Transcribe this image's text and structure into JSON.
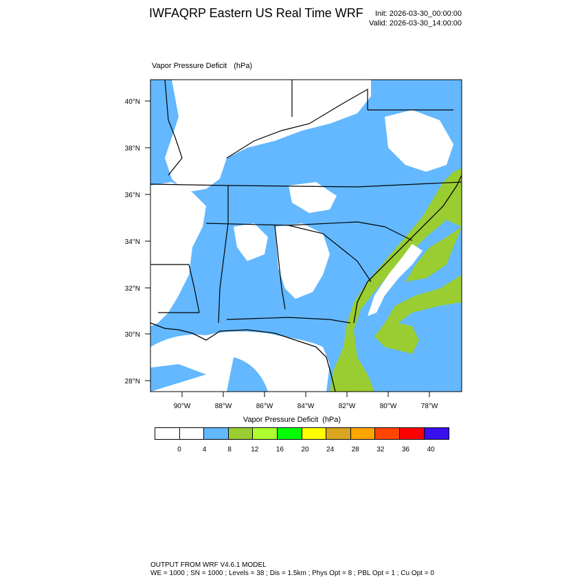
{
  "header": {
    "title": "IWFAQRP Eastern US Real Time WRF",
    "init": "Init: 2026-03-30_00:00:00",
    "valid": "Valid: 2026-03-30_14:00:00"
  },
  "plot": {
    "variable": "Vapor Pressure Deficit",
    "units": "(hPa)",
    "lat_labels": [
      "40°N",
      "38°N",
      "36°N",
      "34°N",
      "32°N",
      "30°N",
      "28°N"
    ],
    "lon_labels": [
      "90°W",
      "88°W",
      "86°W",
      "84°W",
      "82°W",
      "80°W",
      "78°W"
    ]
  },
  "colorbar": {
    "title": "Vapor Pressure Deficit",
    "units": "(hPa)",
    "labels": [
      "0",
      "4",
      "8",
      "12",
      "16",
      "20",
      "24",
      "28",
      "32",
      "36",
      "40"
    ],
    "colors": [
      "#ffffff",
      "#ffffff",
      "#63b8ff",
      "#9acd32",
      "#adff2f",
      "#00ff00",
      "#ffff00",
      "#daa520",
      "#ffa500",
      "#ff4500",
      "#ff0000",
      "#3a0fef"
    ]
  },
  "colors": {
    "land_low": "#ffffff",
    "vpd_4_8": "#63b8ff",
    "vpd_8_12": "#9acd32",
    "borders": "#000000"
  },
  "footer": {
    "line1": "OUTPUT FROM WRF V4.6.1 MODEL",
    "line2": "WE = 1000 ; SN = 1000 ; Levels = 38 ; Dis = 1.5km ; Phys Opt = 8 ; PBL Opt = 1 ; Cu Opt = 0"
  }
}
